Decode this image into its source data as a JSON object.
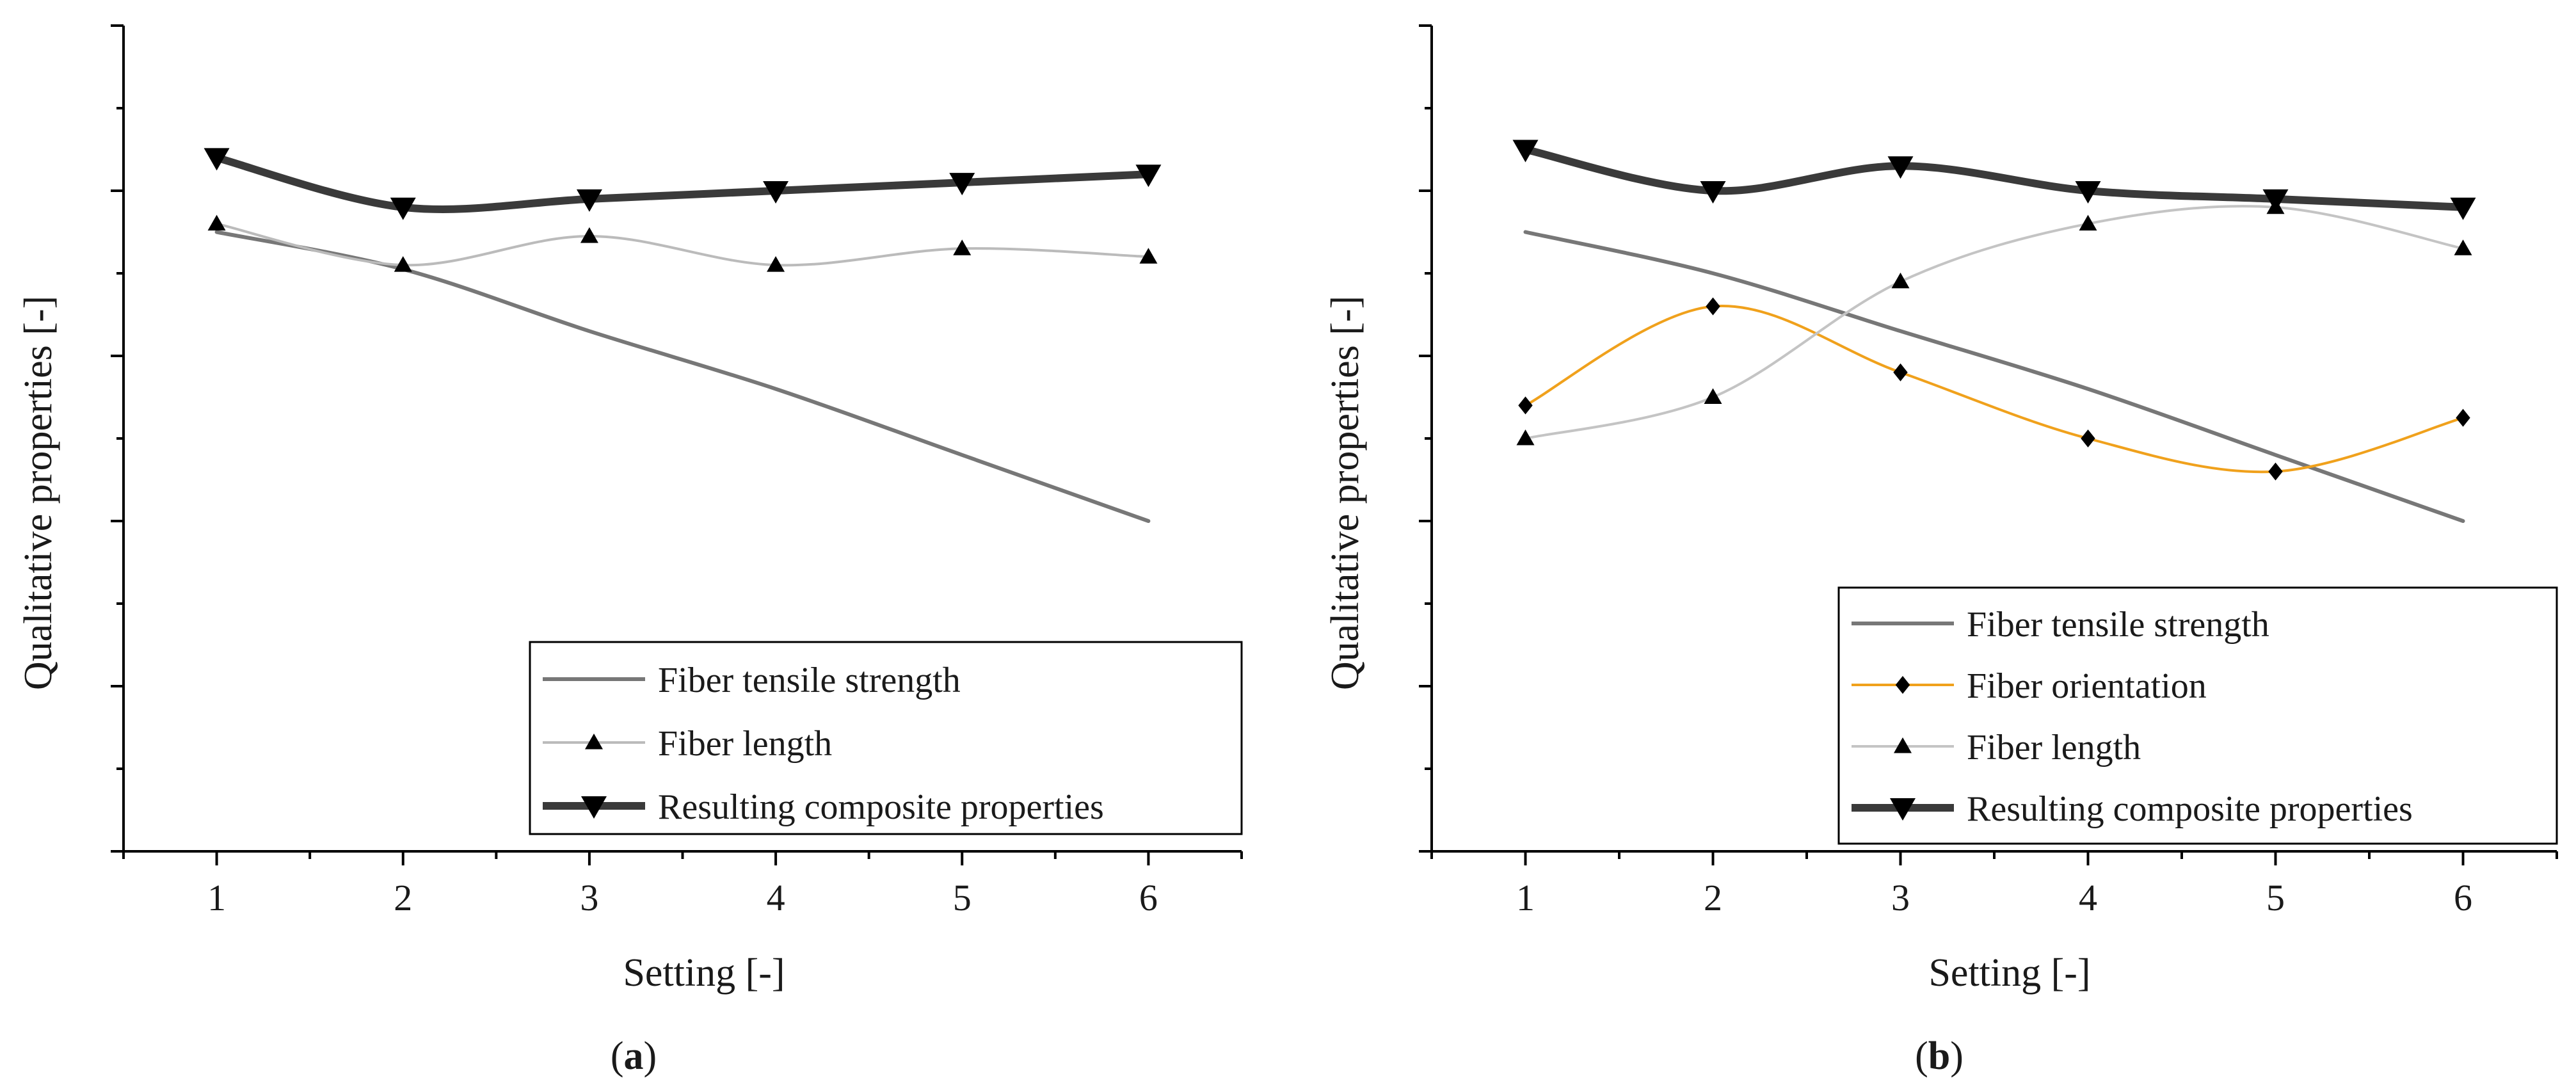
{
  "panels": [
    {
      "panel_label": "(a)",
      "chart_data": {
        "type": "line",
        "title": "",
        "xlabel": "Setting [-]",
        "ylabel": "Qualitative properties [-]",
        "x": [
          1,
          2,
          3,
          4,
          5,
          6
        ],
        "xticks": [
          "1",
          "2",
          "3",
          "4",
          "5",
          "6"
        ],
        "xlim": [
          0.5,
          6.5
        ],
        "ylim": [
          0,
          10
        ],
        "yticks_labeled": false,
        "grid": false,
        "legend_position": "bottom-right",
        "series": [
          {
            "name": "Fiber tensile strength",
            "values": [
              7.5,
              7.05,
              6.3,
              5.6,
              4.8,
              4.0
            ],
            "color": "#777777",
            "marker": "none",
            "style": "medium"
          },
          {
            "name": "Fiber length",
            "values": [
              7.6,
              7.1,
              7.45,
              7.1,
              7.3,
              7.2
            ],
            "color": "#bbbbbb",
            "marker": "triangle-up",
            "style": "thin"
          },
          {
            "name": "Resulting composite properties",
            "values": [
              8.4,
              7.8,
              7.9,
              8.0,
              8.1,
              8.2
            ],
            "color": "#3a3a3a",
            "marker": "triangle-down",
            "style": "thick"
          }
        ]
      }
    },
    {
      "panel_label": "(b)",
      "chart_data": {
        "type": "line",
        "title": "",
        "xlabel": "Setting [-]",
        "ylabel": "Qualitative properties [-]",
        "x": [
          1,
          2,
          3,
          4,
          5,
          6
        ],
        "xticks": [
          "1",
          "2",
          "3",
          "4",
          "5",
          "6"
        ],
        "xlim": [
          0.5,
          6.5
        ],
        "ylim": [
          0,
          10
        ],
        "yticks_labeled": false,
        "grid": false,
        "legend_position": "bottom-right",
        "series": [
          {
            "name": "Fiber tensile strength",
            "values": [
              7.5,
              7.0,
              6.3,
              5.6,
              4.8,
              4.0
            ],
            "color": "#777777",
            "marker": "none",
            "style": "medium"
          },
          {
            "name": "Fiber orientation",
            "values": [
              5.4,
              6.6,
              5.8,
              5.0,
              4.6,
              5.25
            ],
            "color": "#f0a11c",
            "marker": "diamond",
            "style": "thin"
          },
          {
            "name": "Fiber length",
            "values": [
              5.0,
              5.5,
              6.9,
              7.6,
              7.8,
              7.3
            ],
            "color": "#c4c4c4",
            "marker": "triangle-up",
            "style": "thin"
          },
          {
            "name": "Resulting composite properties",
            "values": [
              8.5,
              8.0,
              8.3,
              8.0,
              7.9,
              7.8
            ],
            "color": "#3a3a3a",
            "marker": "triangle-down",
            "style": "thick"
          }
        ]
      }
    }
  ]
}
